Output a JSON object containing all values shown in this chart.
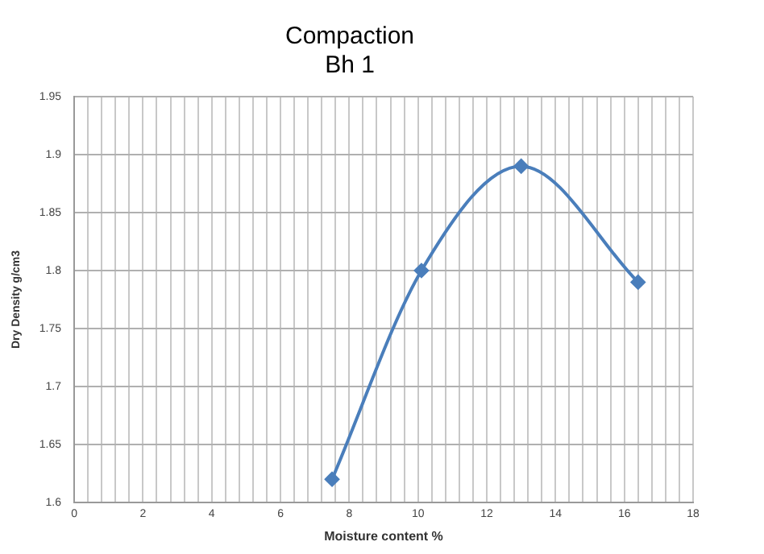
{
  "chart_data": {
    "type": "line",
    "title": "Compaction",
    "subtitle": "Bh 1",
    "xlabel": "Moisture content %",
    "ylabel": "Dry Density g/cm3",
    "x": [
      7.5,
      10.1,
      13,
      16.4
    ],
    "series": [
      {
        "color": "#4a7ebb",
        "values": [
          1.62,
          1.8,
          1.89,
          1.79
        ]
      }
    ],
    "xlim": [
      0,
      18
    ],
    "xticks": [
      0,
      {
        "value": 0.4,
        "label": null
      },
      {
        "value": 0.8,
        "label": null
      },
      {
        "value": 1.2,
        "label": null
      },
      {
        "value": 1.6,
        "label": null
      },
      2,
      {
        "value": 2.4,
        "label": null
      },
      {
        "value": 2.8,
        "label": null
      },
      {
        "value": 3.2,
        "label": null
      },
      {
        "value": 3.6,
        "label": null
      },
      4,
      {
        "value": 4.4,
        "label": null
      },
      {
        "value": 4.8,
        "label": null
      },
      {
        "value": 5.2,
        "label": null
      },
      {
        "value": 5.6,
        "label": null
      },
      6,
      {
        "value": 6.4,
        "label": null
      },
      {
        "value": 6.8,
        "label": null
      },
      {
        "value": 7.2,
        "label": null
      },
      {
        "value": 7.6,
        "label": null
      },
      8,
      {
        "value": 8.4,
        "label": null
      },
      {
        "value": 8.8,
        "label": null
      },
      {
        "value": 9.2,
        "label": null
      },
      {
        "value": 9.6,
        "label": null
      },
      10,
      {
        "value": 10.4,
        "label": null
      },
      {
        "value": 10.8,
        "label": null
      },
      {
        "value": 11.2,
        "label": null
      },
      {
        "value": 11.6,
        "label": null
      },
      12,
      {
        "value": 12.4,
        "label": null
      },
      {
        "value": 12.8,
        "label": null
      },
      {
        "value": 13.2,
        "label": null
      },
      {
        "value": 13.6,
        "label": null
      },
      14,
      {
        "value": 14.4,
        "label": null
      },
      {
        "value": 14.8,
        "label": null
      },
      {
        "value": 15.2,
        "label": null
      },
      {
        "value": 15.6,
        "label": null
      },
      16,
      {
        "value": 16.4,
        "label": null
      },
      {
        "value": 16.8,
        "label": null
      },
      {
        "value": 17.2,
        "label": null
      },
      {
        "value": 17.6,
        "label": null
      },
      18
    ],
    "ylim": [
      1.6,
      1.95
    ],
    "yticks": [
      1.6,
      1.65,
      1.7,
      1.75,
      1.8,
      1.85,
      1.9,
      1.95
    ],
    "grid": true,
    "legend": false,
    "marker": "diamond",
    "line_style": "solid"
  }
}
